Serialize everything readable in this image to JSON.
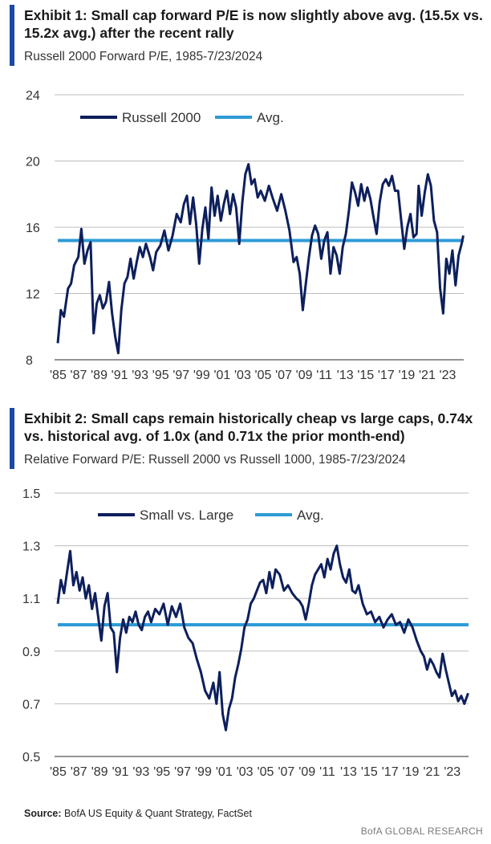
{
  "colors": {
    "series": "#0d1f5c",
    "avg": "#2e9bd6",
    "accent": "#1b4aa0",
    "grid": "#bdbdbd"
  },
  "exhibit1": {
    "title": "Exhibit 1: Small cap forward P/E is now slightly above avg. (15.5x vs. 15.2x avg.) after the recent rally",
    "subtitle": "Russell 2000 Forward P/E, 1985-7/23/2024"
  },
  "exhibit2": {
    "title": "Exhibit 2: Small caps remain historically cheap vs large caps, 0.74x vs. historical avg. of 1.0x (and 0.71x the prior month-end)",
    "subtitle": "Relative Forward P/E: Russell 2000 vs Russell 1000, 1985-7/23/2024"
  },
  "source_label": "Source:",
  "source_text": "BofA US Equity & Quant Strategy, FactSet",
  "brand": "BofA GLOBAL RESEARCH",
  "chart_data": [
    {
      "type": "line",
      "title": "Russell 2000 Forward P/E, 1985-7/23/2024",
      "ylim": [
        8,
        24
      ],
      "yticks": [
        "24",
        "20",
        "16",
        "12",
        "8"
      ],
      "ytick_values": [
        24,
        20,
        16,
        12,
        8
      ],
      "xlim": [
        1985,
        2024.6
      ],
      "xtick_labels": [
        "'85",
        "'87",
        "'89",
        "'91",
        "'93",
        "'95",
        "'97",
        "'99",
        "'01",
        "'03",
        "'05",
        "'07",
        "'09",
        "'11",
        "'13",
        "'15",
        "'17",
        "'19",
        "'21",
        "'23"
      ],
      "xtick_values": [
        1985,
        1987,
        1989,
        1991,
        1993,
        1995,
        1997,
        1999,
        2001,
        2003,
        2005,
        2007,
        2009,
        2011,
        2013,
        2015,
        2017,
        2019,
        2021,
        2023
      ],
      "grid": true,
      "legend_position": "top-left",
      "series": [
        {
          "name": "Russell 2000",
          "x": [
            1985.0,
            1985.3,
            1985.6,
            1986.0,
            1986.3,
            1986.6,
            1987.0,
            1987.3,
            1987.6,
            1987.9,
            1988.2,
            1988.5,
            1988.8,
            1989.1,
            1989.4,
            1989.7,
            1990.0,
            1990.3,
            1990.6,
            1990.9,
            1991.2,
            1991.5,
            1991.8,
            1992.1,
            1992.4,
            1992.7,
            1993.0,
            1993.3,
            1993.6,
            1994.0,
            1994.3,
            1994.6,
            1995.0,
            1995.4,
            1995.8,
            1996.2,
            1996.6,
            1997.0,
            1997.3,
            1997.6,
            1997.9,
            1998.2,
            1998.5,
            1998.8,
            1999.1,
            1999.4,
            1999.7,
            2000.0,
            2000.3,
            2000.6,
            2000.9,
            2001.2,
            2001.5,
            2001.8,
            2002.1,
            2002.4,
            2002.7,
            2003.0,
            2003.3,
            2003.6,
            2003.9,
            2004.2,
            2004.5,
            2004.8,
            2005.2,
            2005.6,
            2006.0,
            2006.4,
            2006.8,
            2007.2,
            2007.6,
            2008.0,
            2008.3,
            2008.6,
            2008.9,
            2009.2,
            2009.5,
            2009.8,
            2010.1,
            2010.4,
            2010.7,
            2011.0,
            2011.3,
            2011.6,
            2011.9,
            2012.2,
            2012.5,
            2012.8,
            2013.1,
            2013.4,
            2013.7,
            2014.0,
            2014.3,
            2014.6,
            2014.9,
            2015.2,
            2015.5,
            2015.8,
            2016.1,
            2016.4,
            2016.7,
            2017.0,
            2017.3,
            2017.6,
            2017.9,
            2018.2,
            2018.5,
            2018.8,
            2019.1,
            2019.4,
            2019.7,
            2020.0,
            2020.2,
            2020.5,
            2020.8,
            2021.1,
            2021.4,
            2021.7,
            2022.0,
            2022.3,
            2022.6,
            2022.9,
            2023.2,
            2023.5,
            2023.8,
            2024.1,
            2024.4,
            2024.56
          ],
          "values": [
            9.0,
            11.0,
            10.6,
            12.3,
            12.6,
            13.7,
            14.2,
            15.9,
            13.8,
            14.6,
            15.1,
            9.6,
            11.4,
            11.9,
            11.1,
            11.5,
            12.7,
            10.8,
            9.4,
            8.4,
            11.0,
            12.6,
            13.0,
            14.1,
            12.9,
            13.9,
            14.8,
            14.2,
            15.0,
            14.2,
            13.4,
            14.5,
            14.9,
            15.8,
            14.6,
            15.5,
            16.8,
            16.3,
            17.4,
            17.9,
            16.2,
            17.8,
            16.2,
            13.8,
            15.9,
            17.2,
            15.3,
            18.4,
            16.7,
            17.9,
            16.4,
            17.4,
            18.2,
            16.8,
            18.0,
            17.2,
            15.0,
            17.5,
            19.2,
            19.8,
            18.6,
            18.9,
            17.8,
            18.2,
            17.6,
            18.5,
            17.7,
            17.0,
            18.0,
            17.0,
            15.8,
            13.9,
            14.2,
            13.2,
            11.0,
            12.6,
            14.2,
            15.5,
            16.1,
            15.6,
            14.1,
            15.2,
            15.7,
            13.2,
            14.8,
            14.3,
            13.2,
            14.8,
            15.6,
            17.0,
            18.7,
            18.1,
            17.3,
            18.6,
            17.6,
            18.4,
            17.7,
            16.6,
            15.6,
            17.5,
            18.6,
            18.9,
            18.5,
            19.1,
            18.2,
            18.2,
            16.4,
            14.7,
            16.0,
            16.8,
            15.4,
            15.6,
            18.5,
            16.7,
            18.1,
            19.2,
            18.5,
            16.4,
            15.7,
            12.3,
            10.8,
            14.1,
            13.2,
            14.6,
            12.5,
            14.3,
            15.0,
            15.5
          ]
        },
        {
          "name": "Avg.",
          "values": [
            15.2
          ]
        }
      ]
    },
    {
      "type": "line",
      "title": "Relative Forward P/E: Russell 2000 vs Russell 1000, 1985-7/23/2024",
      "ylim": [
        0.5,
        1.5
      ],
      "yticks": [
        "1.5",
        "1.3",
        "1.1",
        "0.9",
        "0.7",
        "0.5"
      ],
      "ytick_values": [
        1.5,
        1.3,
        1.1,
        0.9,
        0.7,
        0.5
      ],
      "xlim": [
        1985,
        2024.6
      ],
      "xtick_labels": [
        "'85",
        "'87",
        "'89",
        "'91",
        "'93",
        "'95",
        "'97",
        "'99",
        "'01",
        "'03",
        "'05",
        "'07",
        "'09",
        "'11",
        "'13",
        "'15",
        "'17",
        "'19",
        "'21",
        "'23"
      ],
      "xtick_values": [
        1985,
        1987,
        1989,
        1991,
        1993,
        1995,
        1997,
        1999,
        2001,
        2003,
        2005,
        2007,
        2009,
        2011,
        2013,
        2015,
        2017,
        2019,
        2021,
        2023
      ],
      "grid": true,
      "legend_position": "top-center",
      "series": [
        {
          "name": "Small vs. Large",
          "x": [
            1985.0,
            1985.3,
            1985.6,
            1985.9,
            1986.2,
            1986.5,
            1986.8,
            1987.1,
            1987.4,
            1987.7,
            1988.0,
            1988.3,
            1988.6,
            1988.9,
            1989.2,
            1989.5,
            1989.8,
            1990.1,
            1990.4,
            1990.7,
            1991.0,
            1991.3,
            1991.6,
            1991.9,
            1992.2,
            1992.5,
            1992.8,
            1993.1,
            1993.4,
            1993.7,
            1994.0,
            1994.4,
            1994.8,
            1995.2,
            1995.6,
            1996.0,
            1996.4,
            1996.8,
            1997.2,
            1997.6,
            1998.0,
            1998.4,
            1998.8,
            1999.2,
            1999.6,
            2000.0,
            2000.3,
            2000.6,
            2000.9,
            2001.2,
            2001.5,
            2001.8,
            2002.1,
            2002.4,
            2002.7,
            2003.0,
            2003.3,
            2003.6,
            2003.9,
            2004.2,
            2004.5,
            2004.8,
            2005.1,
            2005.4,
            2005.7,
            2006.0,
            2006.4,
            2006.8,
            2007.2,
            2007.6,
            2008.0,
            2008.3,
            2008.6,
            2008.9,
            2009.2,
            2009.5,
            2009.8,
            2010.1,
            2010.4,
            2010.7,
            2011.0,
            2011.3,
            2011.6,
            2011.9,
            2012.2,
            2012.5,
            2012.8,
            2013.1,
            2013.4,
            2013.7,
            2014.0,
            2014.4,
            2014.8,
            2015.2,
            2015.6,
            2016.0,
            2016.4,
            2016.8,
            2017.2,
            2017.6,
            2018.0,
            2018.4,
            2018.8,
            2019.2,
            2019.6,
            2020.0,
            2020.3,
            2020.6,
            2020.9,
            2021.2,
            2021.5,
            2021.8,
            2022.1,
            2022.4,
            2022.7,
            2023.0,
            2023.3,
            2023.6,
            2023.9,
            2024.2,
            2024.56
          ],
          "values": [
            1.08,
            1.17,
            1.12,
            1.2,
            1.28,
            1.15,
            1.2,
            1.13,
            1.18,
            1.1,
            1.15,
            1.06,
            1.12,
            1.03,
            0.94,
            1.07,
            1.12,
            0.99,
            0.97,
            0.82,
            0.95,
            1.02,
            0.97,
            1.03,
            1.01,
            1.05,
            1.0,
            0.98,
            1.03,
            1.05,
            1.01,
            1.06,
            1.04,
            1.08,
            1.0,
            1.07,
            1.03,
            1.08,
            0.99,
            0.95,
            0.93,
            0.87,
            0.82,
            0.75,
            0.72,
            0.78,
            0.7,
            0.82,
            0.66,
            0.6,
            0.68,
            0.72,
            0.8,
            0.85,
            0.91,
            0.99,
            1.02,
            1.08,
            1.1,
            1.13,
            1.16,
            1.17,
            1.12,
            1.2,
            1.14,
            1.21,
            1.19,
            1.13,
            1.15,
            1.12,
            1.1,
            1.09,
            1.07,
            1.02,
            1.08,
            1.15,
            1.19,
            1.21,
            1.23,
            1.18,
            1.25,
            1.21,
            1.27,
            1.3,
            1.23,
            1.18,
            1.16,
            1.21,
            1.13,
            1.12,
            1.15,
            1.08,
            1.04,
            1.05,
            1.01,
            1.03,
            0.99,
            1.02,
            1.04,
            1.0,
            1.01,
            0.97,
            1.02,
            0.99,
            0.94,
            0.9,
            0.88,
            0.83,
            0.87,
            0.85,
            0.82,
            0.8,
            0.89,
            0.83,
            0.78,
            0.73,
            0.75,
            0.71,
            0.73,
            0.7,
            0.74
          ]
        },
        {
          "name": "Avg.",
          "values": [
            1.0
          ]
        }
      ]
    }
  ]
}
